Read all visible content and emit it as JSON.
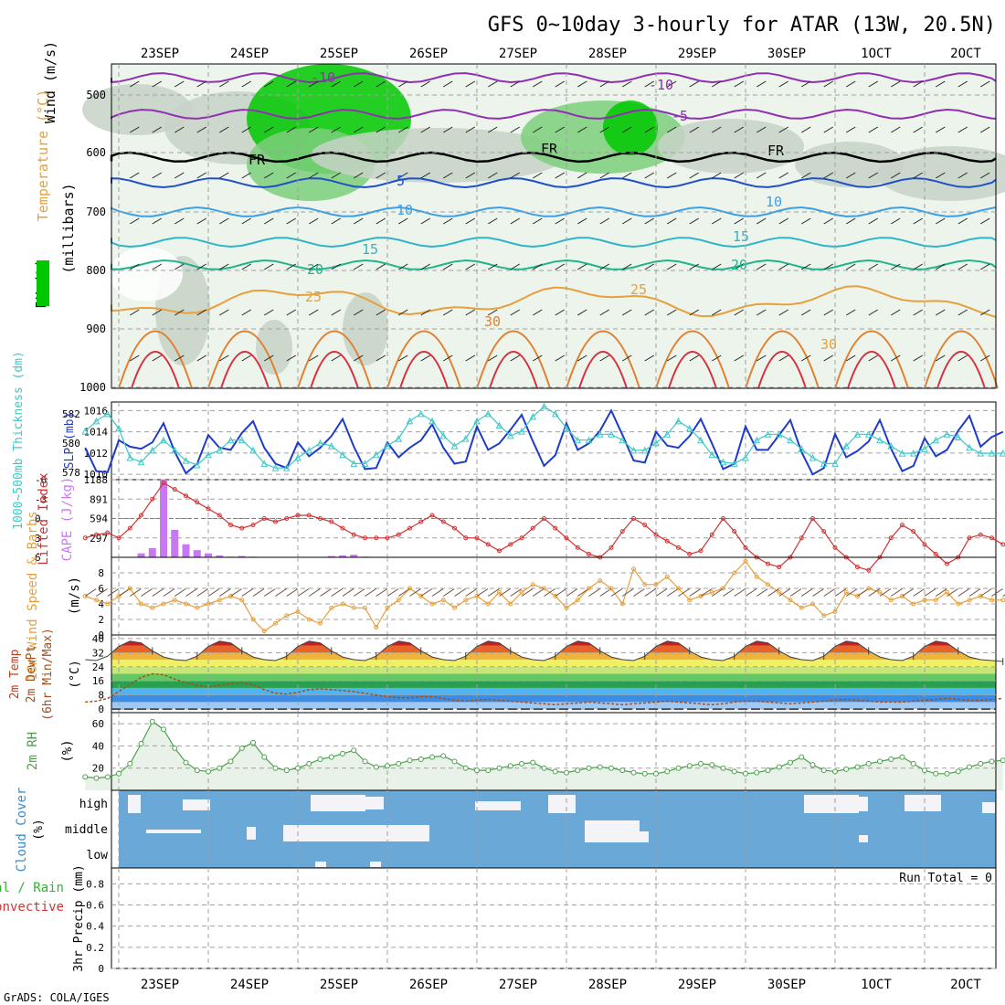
{
  "title": "GFS 0~10day 3-hourly for ATAR (13W, 20.5N)",
  "credit": "GrADS: COLA/IGES",
  "dates": [
    "23SEP",
    "24SEP",
    "25SEP",
    "26SEP",
    "27SEP",
    "28SEP",
    "29SEP",
    "30SEP",
    "1OCT",
    "2OCT"
  ],
  "colors": {
    "frame": "#000000",
    "grid": "#a0a0a0",
    "rh_green": "#00c800",
    "rh_grey": "#c8d2c8",
    "slp": "#1e3cc8",
    "thickness": "#3cc8c8",
    "lifted": "#d23232",
    "cape": "#c878f0",
    "wind10": "#e6a03c",
    "dew": "#a0501e",
    "rh2m": "#4ea04e",
    "cloud": "#6aa8d8",
    "cloud_gap": "#f4f4f8"
  },
  "panels": {
    "upper": {
      "ylabels": [
        "Wind (m/s)",
        "Temperature (°C)",
        "RH (%)",
        "(millibars)"
      ],
      "levels": [
        "500",
        "600",
        "700",
        "800",
        "900",
        "1000"
      ],
      "isotherm_labels": [
        "-10",
        "-10",
        "-5",
        "FR",
        "FR",
        "FR",
        "5",
        "10",
        "10",
        "15",
        "15",
        "20",
        "20",
        "25",
        "25",
        "30",
        "30"
      ]
    },
    "slp": {
      "ylabel_left": "1000~500mb Thickness (dm)",
      "ylabel_right": "SLP (mb)",
      "thick_ticks": [
        "582",
        "580",
        "578"
      ],
      "slp_ticks": [
        "1016",
        "1014",
        "1012",
        "1010"
      ]
    },
    "cape": {
      "ylabel_left": "Lifted Index",
      "ylabel_right": "CAPE (J/kg)",
      "li_ticks": [
        "-6",
        "-3",
        "0",
        "3",
        "6"
      ],
      "cape_ticks": [
        "1188",
        "891",
        "594",
        "297"
      ]
    },
    "wind10": {
      "ylabel_left": "10m Wind Speed & Barbs",
      "ylabel_right": "(m/s)",
      "ticks": [
        "8",
        "6",
        "4",
        "2",
        "0"
      ]
    },
    "temp": {
      "ylabel_lines": [
        "2m Temp",
        "2m DewPt",
        "(6hr Min/Max)"
      ],
      "ylabel_right": "(°C)",
      "ticks": [
        "40",
        "32",
        "24",
        "16",
        "8",
        "0"
      ]
    },
    "rh": {
      "ylabel_left": "2m RH",
      "ylabel_right": "(%)",
      "ticks": [
        "60",
        "40",
        "20"
      ]
    },
    "cloud": {
      "ylabel_left": "Cloud Cover",
      "ylabel_right": "(%)",
      "levels": [
        "high",
        "middle",
        "low"
      ]
    },
    "precip": {
      "ylabel_left_1": "Total / Rain",
      "ylabel_left_2": "Convective",
      "ylabel_right": "3hr Precip (mm)",
      "ticks": [
        "0.8",
        "0.6",
        "0.4",
        "0.2",
        "0"
      ],
      "run_total": "Run Total = 0"
    }
  },
  "chart_data": {
    "type": "line",
    "time_step_hours": 3,
    "sea_level_pressure_mb": [
      1012.5,
      1010.3,
      1010.2,
      1013.2,
      1012.6,
      1012.4,
      1013.0,
      1014.8,
      1012.1,
      1010.1,
      1011.0,
      1013.7,
      1012.5,
      1012.3,
      1013.9,
      1015.0,
      1012.5,
      1011.0,
      1010.6,
      1013.0,
      1011.7,
      1012.5,
      1013.6,
      1015.2,
      1012.6,
      1010.5,
      1010.6,
      1013.0,
      1011.6,
      1012.5,
      1013.2,
      1014.7,
      1012.5,
      1011.0,
      1011.2,
      1014.5,
      1012.3,
      1012.9,
      1014.2,
      1015.6,
      1013.1,
      1010.8,
      1011.8,
      1014.8,
      1012.3,
      1012.9,
      1014.1,
      1016.0,
      1013.7,
      1011.3,
      1011.1,
      1014.0,
      1012.7,
      1012.5,
      1013.6,
      1015.2,
      1012.9,
      1010.5,
      1011.0,
      1014.5,
      1012.3,
      1012.3,
      1013.7,
      1015.1,
      1012.1,
      1010.0,
      1010.6,
      1013.8,
      1011.6,
      1012.2,
      1013.1,
      1015.1,
      1012.4,
      1010.3,
      1010.8,
      1013.4,
      1011.7,
      1012.3,
      1014.1,
      1015.5,
      1012.6,
      1013.5,
      1014.0
    ],
    "thickness_1000_500_dm": [
      580.8,
      581.5,
      582.0,
      581.0,
      579.0,
      578.7,
      579.5,
      580.2,
      579.5,
      578.8,
      578.5,
      579.2,
      579.5,
      580.2,
      580.2,
      579.5,
      578.6,
      578.3,
      578.3,
      579.0,
      579.5,
      580.0,
      579.8,
      579.2,
      578.6,
      578.6,
      579.2,
      579.8,
      580.3,
      581.5,
      582.0,
      581.5,
      580.5,
      579.8,
      580.3,
      581.5,
      582.0,
      581.2,
      580.5,
      580.8,
      581.8,
      582.5,
      582.0,
      581.0,
      580.2,
      580.2,
      580.6,
      580.6,
      580.2,
      579.5,
      579.5,
      580.0,
      580.6,
      581.5,
      581.0,
      580.2,
      579.2,
      578.7,
      578.6,
      579.0,
      580.2,
      580.6,
      580.6,
      580.2,
      579.6,
      579.0,
      578.6,
      578.6,
      579.8,
      580.6,
      580.6,
      580.2,
      579.8,
      579.3,
      579.3,
      579.6,
      580.2,
      580.6,
      580.4,
      579.7,
      579.3,
      579.3,
      579.3
    ],
    "lifted_index": [
      3.0,
      2.5,
      2.2,
      3.0,
      1.5,
      -0.5,
      -3.0,
      -5.5,
      -4.5,
      -3.5,
      -2.5,
      -1.5,
      -0.5,
      1.0,
      1.5,
      1.0,
      0.0,
      0.5,
      0.0,
      -0.5,
      -0.5,
      0.0,
      0.5,
      1.5,
      2.5,
      3.0,
      3.0,
      3.0,
      2.5,
      1.5,
      0.5,
      -0.5,
      0.5,
      1.5,
      3.0,
      3.0,
      4.0,
      5.0,
      4.0,
      3.0,
      1.5,
      0.0,
      1.5,
      3.0,
      4.5,
      5.5,
      6.0,
      4.5,
      2.0,
      0.0,
      1.0,
      2.5,
      3.5,
      4.5,
      5.5,
      5.0,
      2.5,
      0.0,
      2.0,
      4.5,
      6.0,
      7.0,
      7.5,
      6.0,
      3.0,
      0.0,
      2.0,
      4.5,
      6.0,
      7.5,
      8.0,
      6.0,
      3.0,
      1.0,
      2.0,
      4.0,
      5.5,
      7.0,
      6.0,
      3.0,
      2.5,
      3.0,
      4.0
    ],
    "cape_j_per_kg": [
      0,
      0,
      0,
      0,
      0,
      60,
      140,
      1188,
      420,
      200,
      110,
      60,
      30,
      10,
      20,
      10,
      0,
      0,
      0,
      0,
      0,
      0,
      20,
      30,
      40,
      10,
      0,
      0,
      0,
      0,
      0,
      0,
      0,
      0,
      0,
      0,
      0,
      0,
      0,
      0,
      0,
      0,
      0,
      0,
      0,
      0,
      0,
      0,
      0,
      0,
      0,
      0,
      0,
      0,
      0,
      0,
      0,
      0,
      0,
      0,
      0,
      0,
      0,
      0,
      0,
      0,
      0,
      0,
      0,
      0,
      0,
      0,
      0,
      0,
      0,
      0,
      0,
      0,
      0,
      0,
      0,
      0,
      0
    ],
    "wind10m_speed_ms": [
      5.0,
      4.5,
      4.0,
      5.0,
      6.0,
      4.0,
      3.5,
      4.0,
      4.5,
      4.0,
      3.5,
      4.0,
      4.5,
      5.0,
      4.5,
      2.0,
      0.5,
      1.5,
      2.5,
      3.0,
      2.0,
      1.5,
      3.5,
      4.0,
      3.5,
      3.5,
      1.0,
      3.5,
      4.5,
      6.0,
      5.0,
      4.0,
      4.5,
      3.5,
      4.5,
      5.0,
      4.0,
      5.5,
      4.0,
      5.5,
      6.5,
      6.0,
      5.0,
      3.5,
      4.5,
      6.0,
      7.0,
      6.0,
      4.0,
      8.5,
      6.5,
      6.5,
      7.5,
      6.0,
      4.5,
      5.0,
      5.5,
      6.0,
      8.0,
      9.5,
      7.5,
      6.5,
      5.5,
      4.5,
      3.5,
      4.0,
      2.5,
      3.0,
      5.5,
      5.0,
      6.0,
      5.5,
      4.5,
      5.0,
      4.0,
      4.5,
      4.5,
      5.5,
      4.0,
      4.5,
      5.0,
      4.5,
      4.5
    ],
    "temp2m_c": [
      28.0,
      27.5,
      30.0,
      35.5,
      38.5,
      37.5,
      33.0,
      29.5,
      28.0,
      27.5,
      30.0,
      35.5,
      38.5,
      37.5,
      33.0,
      29.5,
      28.0,
      27.5,
      30.0,
      35.5,
      38.5,
      37.5,
      33.0,
      29.5,
      28.0,
      27.5,
      30.0,
      35.5,
      38.5,
      37.5,
      33.0,
      29.5,
      28.0,
      27.5,
      30.0,
      35.5,
      38.5,
      37.5,
      33.0,
      29.5,
      28.0,
      27.5,
      30.0,
      35.5,
      38.5,
      37.5,
      33.0,
      29.5,
      28.0,
      27.5,
      30.0,
      35.5,
      38.5,
      37.5,
      33.0,
      29.5,
      28.0,
      27.5,
      30.0,
      35.5,
      38.5,
      37.5,
      33.0,
      29.5,
      28.0,
      27.5,
      30.0,
      35.5,
      38.5,
      37.5,
      33.0,
      29.5,
      28.0,
      27.5,
      30.0,
      35.5,
      38.5,
      37.5,
      33.0,
      29.5,
      28.0,
      27.5,
      27.0
    ],
    "dewpoint2m_c": [
      4.0,
      4.5,
      6.0,
      10.0,
      14.0,
      18.0,
      20.0,
      19.5,
      17.0,
      15.0,
      13.5,
      12.5,
      13.5,
      14.5,
      15.0,
      14.0,
      11.0,
      9.0,
      8.5,
      9.5,
      11.0,
      11.5,
      11.0,
      10.5,
      10.0,
      9.0,
      8.0,
      7.0,
      6.5,
      6.5,
      7.0,
      7.0,
      6.0,
      5.0,
      4.5,
      5.0,
      5.5,
      5.0,
      4.5,
      4.0,
      3.5,
      3.0,
      2.5,
      3.0,
      3.5,
      4.0,
      3.5,
      3.0,
      2.5,
      3.0,
      3.5,
      4.0,
      4.5,
      4.0,
      3.5,
      3.0,
      2.5,
      3.0,
      4.0,
      4.5,
      4.5,
      4.0,
      3.5,
      3.0,
      3.5,
      4.0,
      4.5,
      5.0,
      5.5,
      5.0,
      4.5,
      4.0,
      4.0,
      4.0,
      4.5,
      5.0,
      5.5,
      6.0,
      5.5,
      5.0,
      5.0,
      5.5,
      6.0
    ],
    "rh2m_pct": [
      12,
      11,
      12,
      15,
      24,
      42,
      62,
      55,
      38,
      25,
      18,
      17,
      20,
      26,
      38,
      43,
      30,
      20,
      18,
      20,
      24,
      28,
      30,
      33,
      36,
      26,
      21,
      22,
      24,
      27,
      28,
      30,
      31,
      26,
      20,
      18,
      18,
      20,
      22,
      24,
      25,
      20,
      17,
      16,
      18,
      20,
      21,
      20,
      18,
      16,
      15,
      15,
      17,
      20,
      22,
      24,
      23,
      20,
      17,
      15,
      16,
      18,
      21,
      25,
      30,
      23,
      18,
      17,
      19,
      21,
      24,
      26,
      28,
      30,
      24,
      18,
      15,
      15,
      17,
      21,
      24,
      26,
      27
    ]
  }
}
